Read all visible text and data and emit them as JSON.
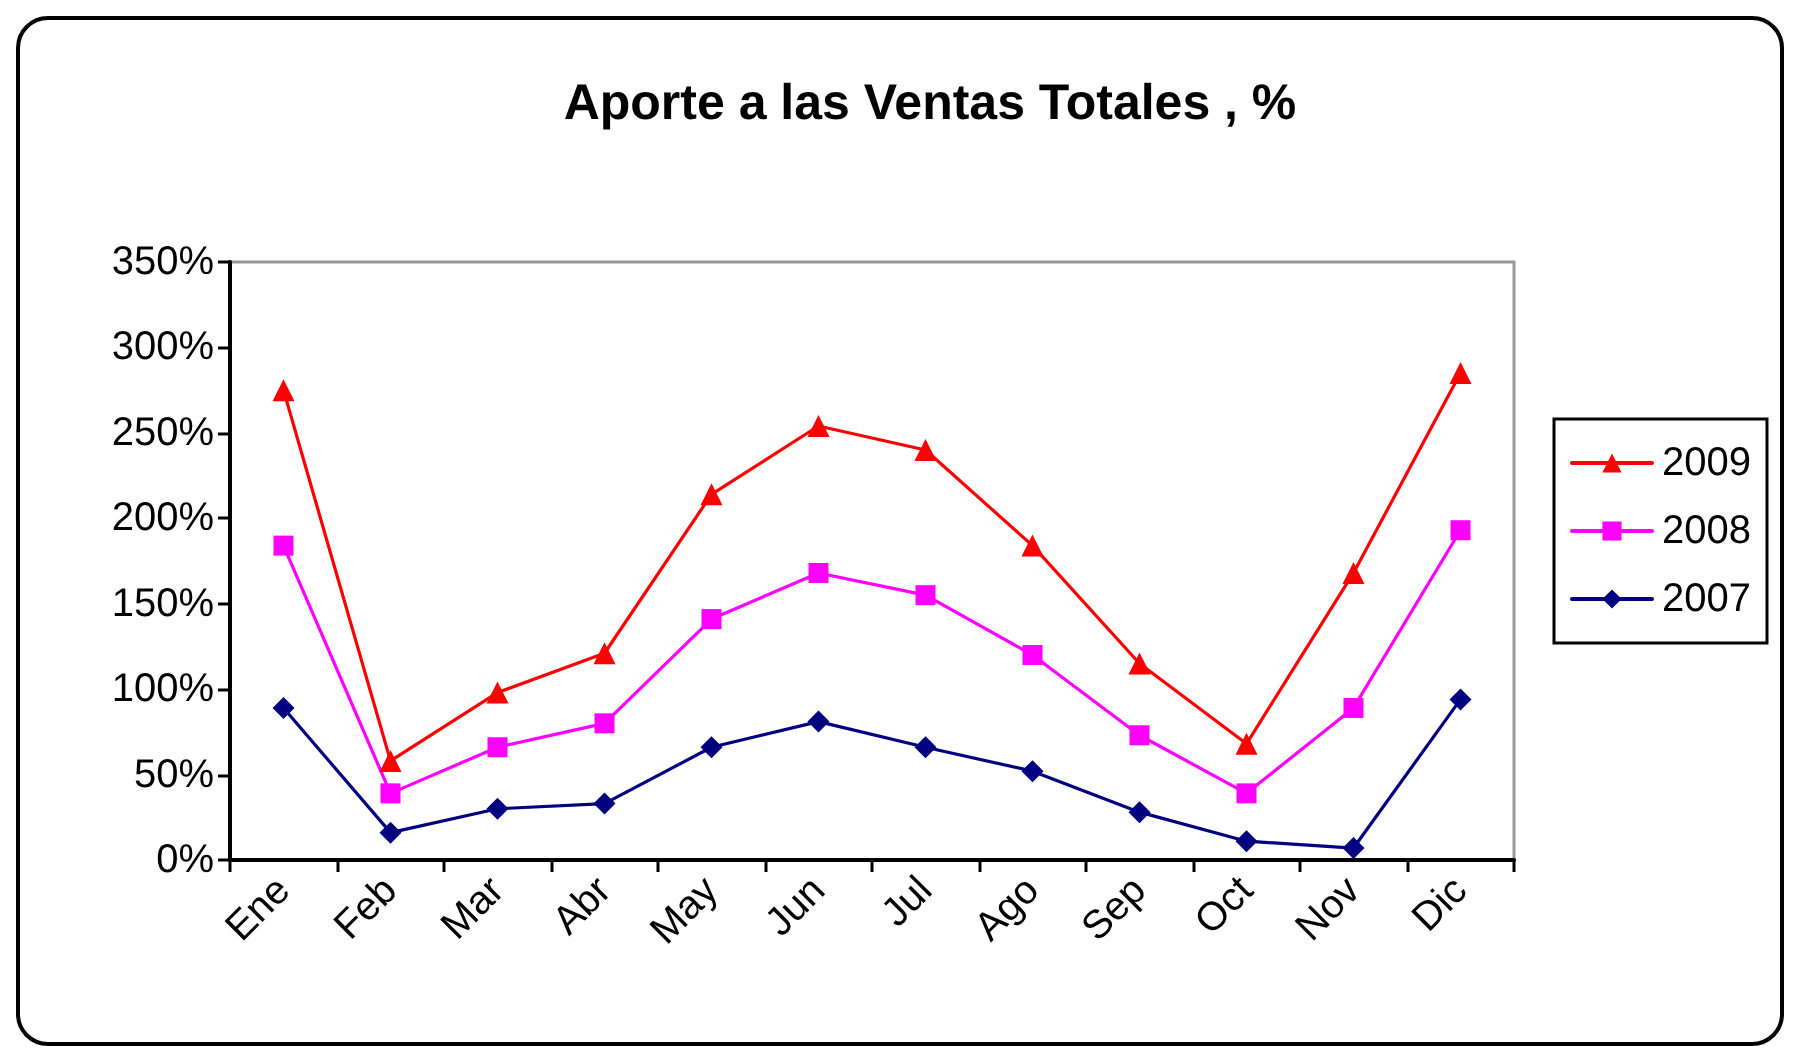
{
  "chart_data": {
    "type": "line",
    "title": "Aporte a las Ventas Totales , %",
    "categories": [
      "Ene",
      "Feb",
      "Mar",
      "Abr",
      "May",
      "Jun",
      "Jul",
      "Ago",
      "Sep",
      "Oct",
      "Nov",
      "Dic"
    ],
    "series": [
      {
        "name": "2009",
        "color": "#ff0000",
        "marker": "triangle",
        "values": [
          275,
          58,
          98,
          121,
          214,
          254,
          240,
          184,
          115,
          68,
          168,
          285
        ]
      },
      {
        "name": "2008",
        "color": "#ff00ff",
        "marker": "square",
        "values": [
          184,
          39,
          66,
          80,
          141,
          168,
          155,
          120,
          73,
          39,
          89,
          193
        ]
      },
      {
        "name": "2007",
        "color": "#000080",
        "marker": "diamond",
        "values": [
          89,
          16,
          30,
          33,
          66,
          81,
          66,
          52,
          28,
          11,
          7,
          94
        ]
      }
    ],
    "ylim": [
      0,
      350
    ],
    "yticks": [
      {
        "value": 0,
        "label": "0%"
      },
      {
        "value": 50,
        "label": "50%"
      },
      {
        "value": 100,
        "label": "100%"
      },
      {
        "value": 150,
        "label": "150%"
      },
      {
        "value": 200,
        "label": "200%"
      },
      {
        "value": 250,
        "label": "250%"
      },
      {
        "value": 300,
        "label": "300%"
      },
      {
        "value": 350,
        "label": "350%"
      }
    ],
    "grid": false,
    "legend": "right",
    "line_style": "solid"
  }
}
